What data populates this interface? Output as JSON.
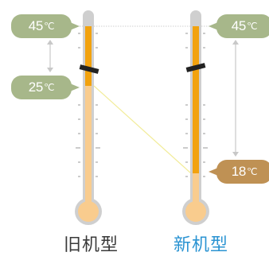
{
  "diagram": {
    "old_machine": {
      "name": "旧机型",
      "upper_temp": "45",
      "lower_temp": "25",
      "unit": "℃"
    },
    "new_machine": {
      "name": "新机型",
      "upper_temp": "45",
      "lower_temp": "18",
      "unit": "℃"
    },
    "colors": {
      "mercury_active": "#f2a20e",
      "mercury_inactive": "#f9cc8e",
      "tube": "#cfcfcf",
      "badge_upper": "#a7b78a",
      "badge_old_lower": "#a7b78a",
      "badge_new_lower": "#bf9154",
      "new_label": "#2a93d2"
    }
  }
}
